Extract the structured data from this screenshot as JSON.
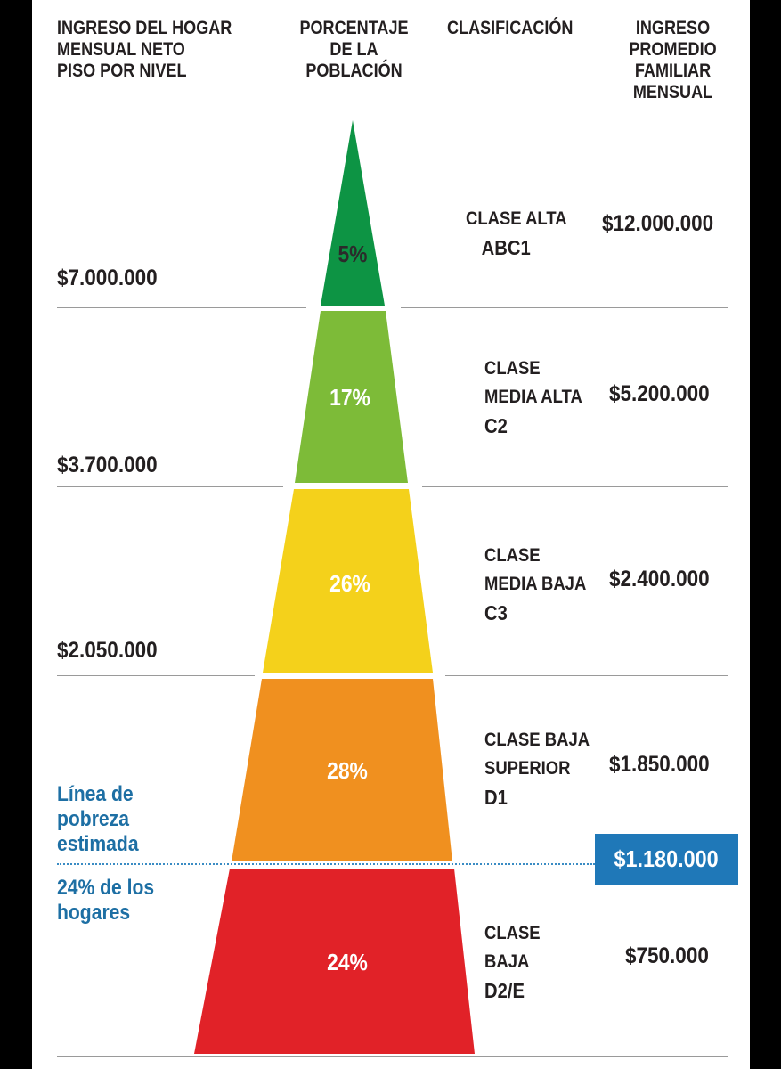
{
  "headers": {
    "col1": [
      "INGRESO DEL HOGAR",
      "MENSUAL NETO",
      "PISO POR NIVEL"
    ],
    "col2": [
      "PORCENTAJE",
      "DE LA",
      "POBLACIÓN"
    ],
    "col3": [
      "CLASIFICACIÓN"
    ],
    "col4": [
      "INGRESO",
      "PROMEDIO",
      "FAMILIAR",
      "MENSUAL"
    ]
  },
  "thresholds": [
    "$7.000.000",
    "$3.700.000",
    "$2.050.000"
  ],
  "levels": [
    {
      "pct": "5%",
      "class_lines": [
        "CLASE ALTA",
        "ABC1"
      ],
      "avg": "$12.000.000",
      "color": "#0d9444"
    },
    {
      "pct": "17%",
      "class_lines": [
        "CLASE",
        "MEDIA ALTA",
        "C2"
      ],
      "avg": "$5.200.000",
      "color": "#7dbb38"
    },
    {
      "pct": "26%",
      "class_lines": [
        "CLASE",
        "MEDIA BAJA",
        "C3"
      ],
      "avg": "$2.400.000",
      "color": "#f4d11b"
    },
    {
      "pct": "28%",
      "class_lines": [
        "CLASE BAJA",
        "SUPERIOR",
        "D1"
      ],
      "avg": "$1.850.000",
      "color": "#f0901f"
    },
    {
      "pct": "24%",
      "class_lines": [
        "CLASE",
        "BAJA",
        "D2/E"
      ],
      "avg": "$750.000",
      "color": "#e12228"
    }
  ],
  "poverty": {
    "label_lines": [
      "Línea de",
      "pobreza",
      "estimada"
    ],
    "share_lines": [
      "24% de los",
      "hogares"
    ],
    "value": "$1.180.000",
    "color": "#1f78b8"
  },
  "chart_data": {
    "type": "table",
    "columns": [
      "INGRESO DEL HOGAR MENSUAL NETO PISO POR NIVEL",
      "PORCENTAJE DE LA POBLACIÓN",
      "CLASIFICACIÓN",
      "INGRESO PROMEDIO FAMILIAR MENSUAL"
    ],
    "rows": [
      [
        "$7.000.000",
        "5%",
        "CLASE ALTA ABC1",
        "$12.000.000"
      ],
      [
        "$3.700.000",
        "17%",
        "CLASE MEDIA ALTA C2",
        "$5.200.000"
      ],
      [
        "$2.050.000",
        "26%",
        "CLASE MEDIA BAJA C3",
        "$2.400.000"
      ],
      [
        "",
        "28%",
        "CLASE BAJA SUPERIOR D1",
        "$1.850.000"
      ],
      [
        "",
        "24%",
        "CLASE BAJA D2/E",
        "$750.000"
      ]
    ],
    "percentages": [
      5,
      17,
      26,
      28,
      24
    ],
    "poverty_line": "$1.180.000"
  }
}
